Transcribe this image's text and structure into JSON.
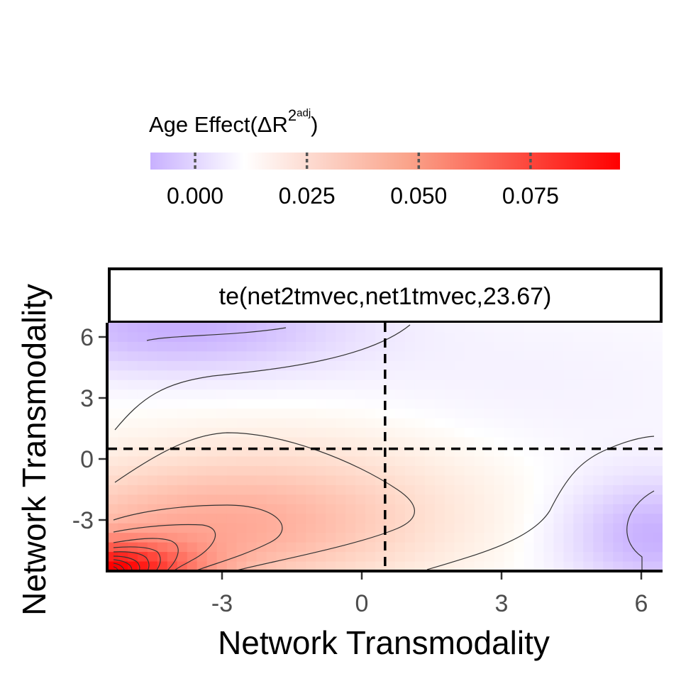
{
  "chart_data": {
    "type": "heatmap",
    "facet_label": "te(net2tmvec,net1tmvec,23.67)",
    "xlabel": "Network Transmodality",
    "ylabel": "Network Transmodality",
    "x_ticks": [
      "-3",
      "0",
      "3",
      "6"
    ],
    "y_ticks": [
      "6",
      "3",
      "0",
      "-3"
    ],
    "x_tick_values": [
      -3,
      0,
      3,
      6
    ],
    "y_tick_values": [
      6,
      3,
      0,
      -3
    ],
    "xlim": [
      -5.5,
      6.6
    ],
    "ylim": [
      -5.5,
      6.6
    ],
    "reference_lines": {
      "x": 0.5,
      "y": 0.5,
      "style": "dashed"
    },
    "legend": {
      "title_main": "Age Effect(ΔR",
      "title_sup": "2",
      "title_sub": "adj",
      "title_end": ")",
      "position": "top",
      "tick_labels": [
        "0.000",
        "0.025",
        "0.050",
        "0.075"
      ],
      "tick_values": [
        0.0,
        0.025,
        0.05,
        0.075
      ],
      "range": [
        -0.01,
        0.095
      ],
      "colors": {
        "low": "#c8b0ff",
        "mid": "#ffffff",
        "high": "#ff0000"
      }
    },
    "surface_description": "peak about 0.09 near x=-5.5,y=-5.5; minima about -0.01 near x=-4,y=6.3 and x=6.3,y=-4",
    "grid": false
  }
}
